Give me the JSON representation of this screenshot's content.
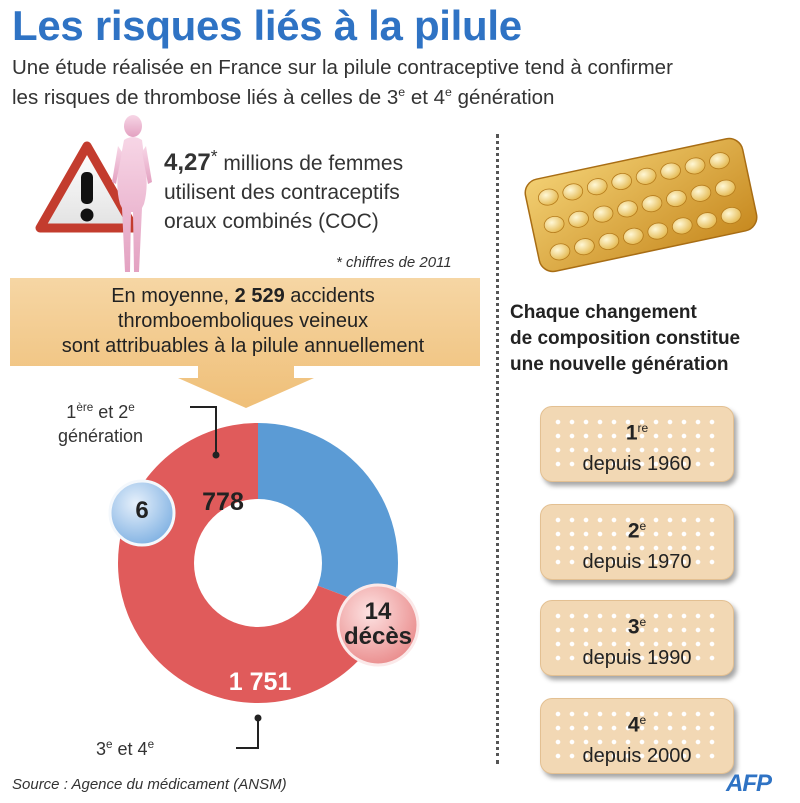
{
  "title": "Les risques liés à la pilule",
  "subtitle": {
    "line1": "Une étude réalisée en France sur la pilule contraceptive tend à confirmer",
    "line2_pre": "les risques de thrombose liés à celles de 3",
    "sup1": "e",
    "line2_mid": " et 4",
    "sup2": "e",
    "line2_post": " génération"
  },
  "stat": {
    "number": "4,27",
    "star": "*",
    "line1": " millions de femmes",
    "line2": "utilisent des contraceptifs",
    "line3": "oraux combinés (COC)"
  },
  "footnote": "* chiffres de 2011",
  "banner": {
    "line1_pre": "En moyenne, ",
    "line1_bold": "2 529",
    "line1_post": " accidents",
    "line2": "thromboemboliques veineux",
    "line3": "sont attribuables à la pilule annuellement"
  },
  "chart_data": {
    "type": "pie",
    "donut": true,
    "total": 2529,
    "slices": [
      {
        "label": "1ère et 2e génération",
        "value": 778,
        "color": "#5b9bd5",
        "deaths": 6
      },
      {
        "label": "3e et 4e",
        "value": 1751,
        "color": "#e05b5b",
        "deaths": 14
      }
    ],
    "labels": {
      "first_gen_l1_pre": "1",
      "first_gen_l1_sup1": "ère",
      "first_gen_l1_mid": " et 2",
      "first_gen_l1_sup2": "e",
      "first_gen_l2": "génération",
      "third_gen_pre": "3",
      "third_gen_sup1": "e",
      "third_gen_mid": " et 4",
      "third_gen_sup2": "e",
      "value_blue": "778",
      "value_red": "1 751",
      "deaths_blue": "6",
      "deaths_red_num": "14",
      "deaths_red_word": "décès"
    }
  },
  "generations": {
    "title_l1": "Chaque changement",
    "title_l2": "de composition constitue",
    "title_l3": "une nouvelle génération",
    "cards": [
      {
        "num": "1",
        "sup": "re",
        "since": "depuis 1960"
      },
      {
        "num": "2",
        "sup": "e",
        "since": "depuis 1970"
      },
      {
        "num": "3",
        "sup": "e",
        "since": "depuis 1990"
      },
      {
        "num": "4",
        "sup": "e",
        "since": "depuis 2000"
      }
    ]
  },
  "source": "Source :  Agence du médicament (ANSM)",
  "logo": "AFP",
  "colors": {
    "title": "#2f73c4",
    "blue_slice": "#5b9bd5",
    "red_slice": "#e05b5b",
    "banner": "#f3c98a",
    "card": "#f2d8b4"
  }
}
